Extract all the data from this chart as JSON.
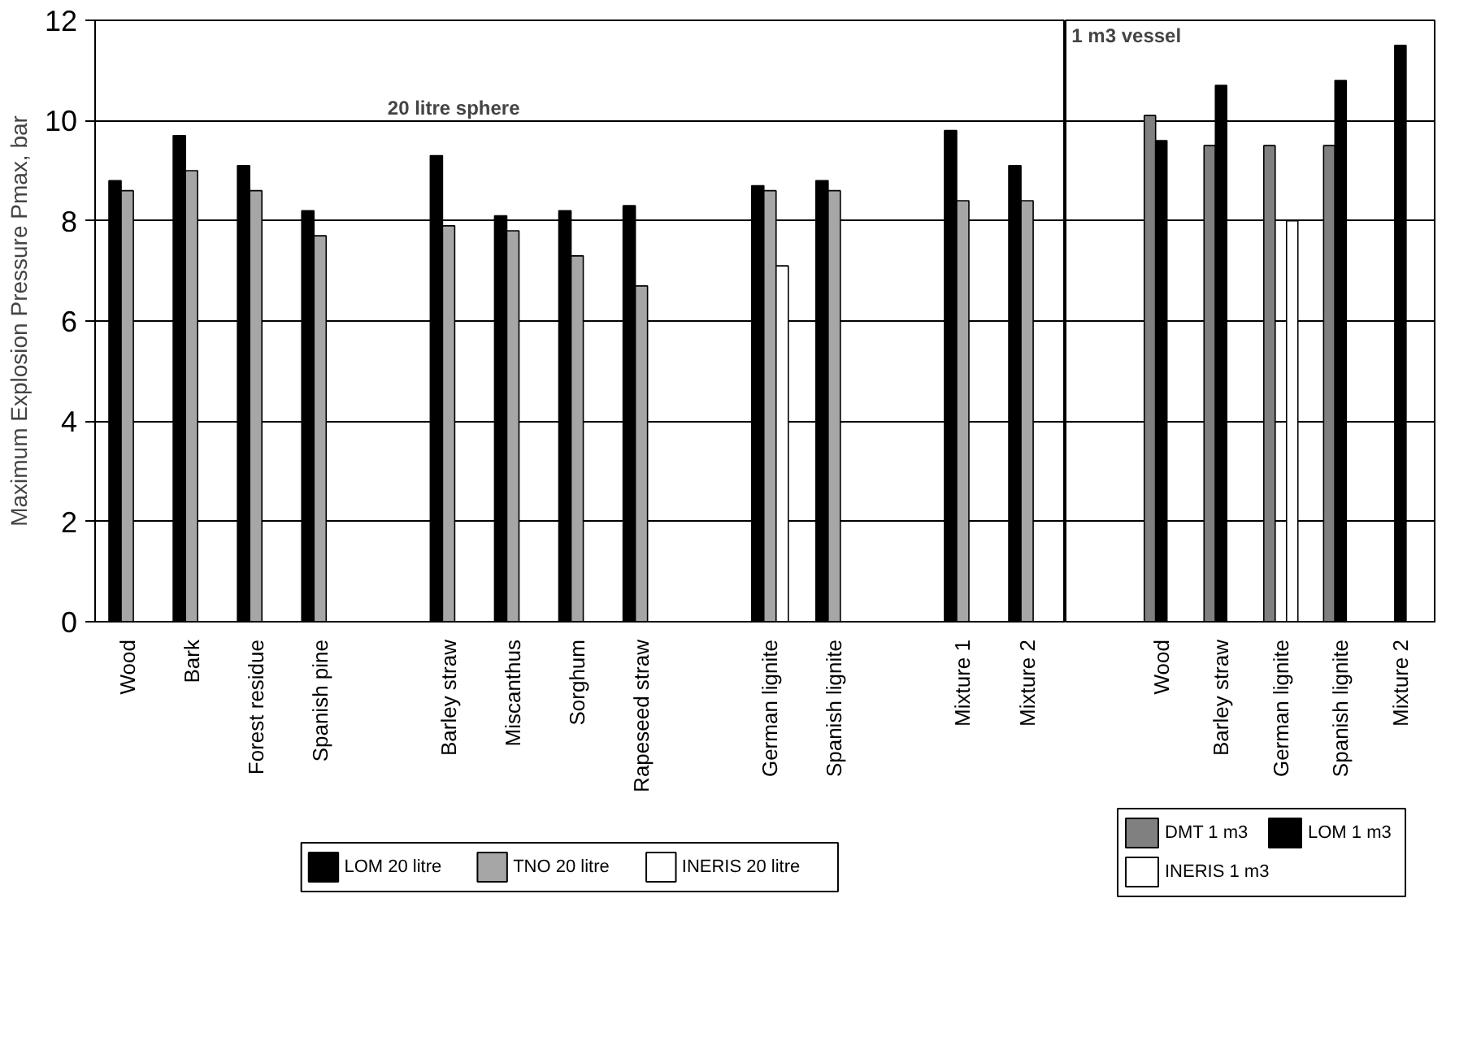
{
  "chart_data": [
    {
      "type": "bar",
      "ylabel": "Maximum Explosion Pressure Pmax, bar",
      "categories": [
        "Wood",
        "Bark",
        "Forest residue",
        "Spanish pine",
        null,
        "Barley straw",
        "Miscanthus",
        "Sorghum",
        "Rapeseed straw",
        null,
        "German lignite",
        "Spanish lignite",
        null,
        "Mixture 1",
        "Mixture 2"
      ],
      "series": [
        {
          "name": "LOM 20 litre",
          "color": "#000000",
          "values": [
            8.8,
            9.7,
            9.1,
            8.2,
            null,
            9.3,
            8.1,
            8.2,
            8.3,
            null,
            8.7,
            8.8,
            null,
            9.8,
            9.1
          ]
        },
        {
          "name": "TNO 20 litre",
          "color": "#a6a6a6",
          "values": [
            8.6,
            9.0,
            8.6,
            7.7,
            null,
            7.9,
            7.8,
            7.3,
            6.7,
            null,
            8.6,
            8.6,
            null,
            8.4,
            8.4
          ]
        },
        {
          "name": "INERIS 20 litre",
          "color": "#ffffff",
          "values": [
            null,
            null,
            null,
            null,
            null,
            null,
            null,
            null,
            null,
            null,
            7.1,
            null,
            null,
            null,
            null
          ]
        }
      ],
      "ylim": [
        0,
        12
      ],
      "yticks": [
        0,
        2,
        4,
        6,
        8,
        10,
        12
      ],
      "grid": "y",
      "legend": "bottom",
      "annotations": [
        "20 litre sphere"
      ]
    },
    {
      "type": "bar",
      "categories": [
        "Wood",
        "Barley straw",
        "German lignite",
        "Spanish lignite",
        "Mixture 2"
      ],
      "series": [
        {
          "name": "DMT 1 m3",
          "color": "#808080",
          "values": [
            10.1,
            9.5,
            9.5,
            9.5,
            null
          ]
        },
        {
          "name": "LOM 1 m3",
          "color": "#000000",
          "values": [
            9.6,
            10.7,
            null,
            10.8,
            11.5
          ]
        },
        {
          "name": "INERIS 1 m3",
          "color": "#ffffff",
          "values": [
            null,
            null,
            8.0,
            null,
            null
          ]
        }
      ],
      "ylim": [
        0,
        12
      ],
      "yticks": [
        0,
        2,
        4,
        6,
        8,
        10,
        12
      ],
      "grid": "y",
      "legend": "bottom",
      "tick_labels": "x",
      "annotations": [
        "1 m3 vessel"
      ]
    }
  ]
}
